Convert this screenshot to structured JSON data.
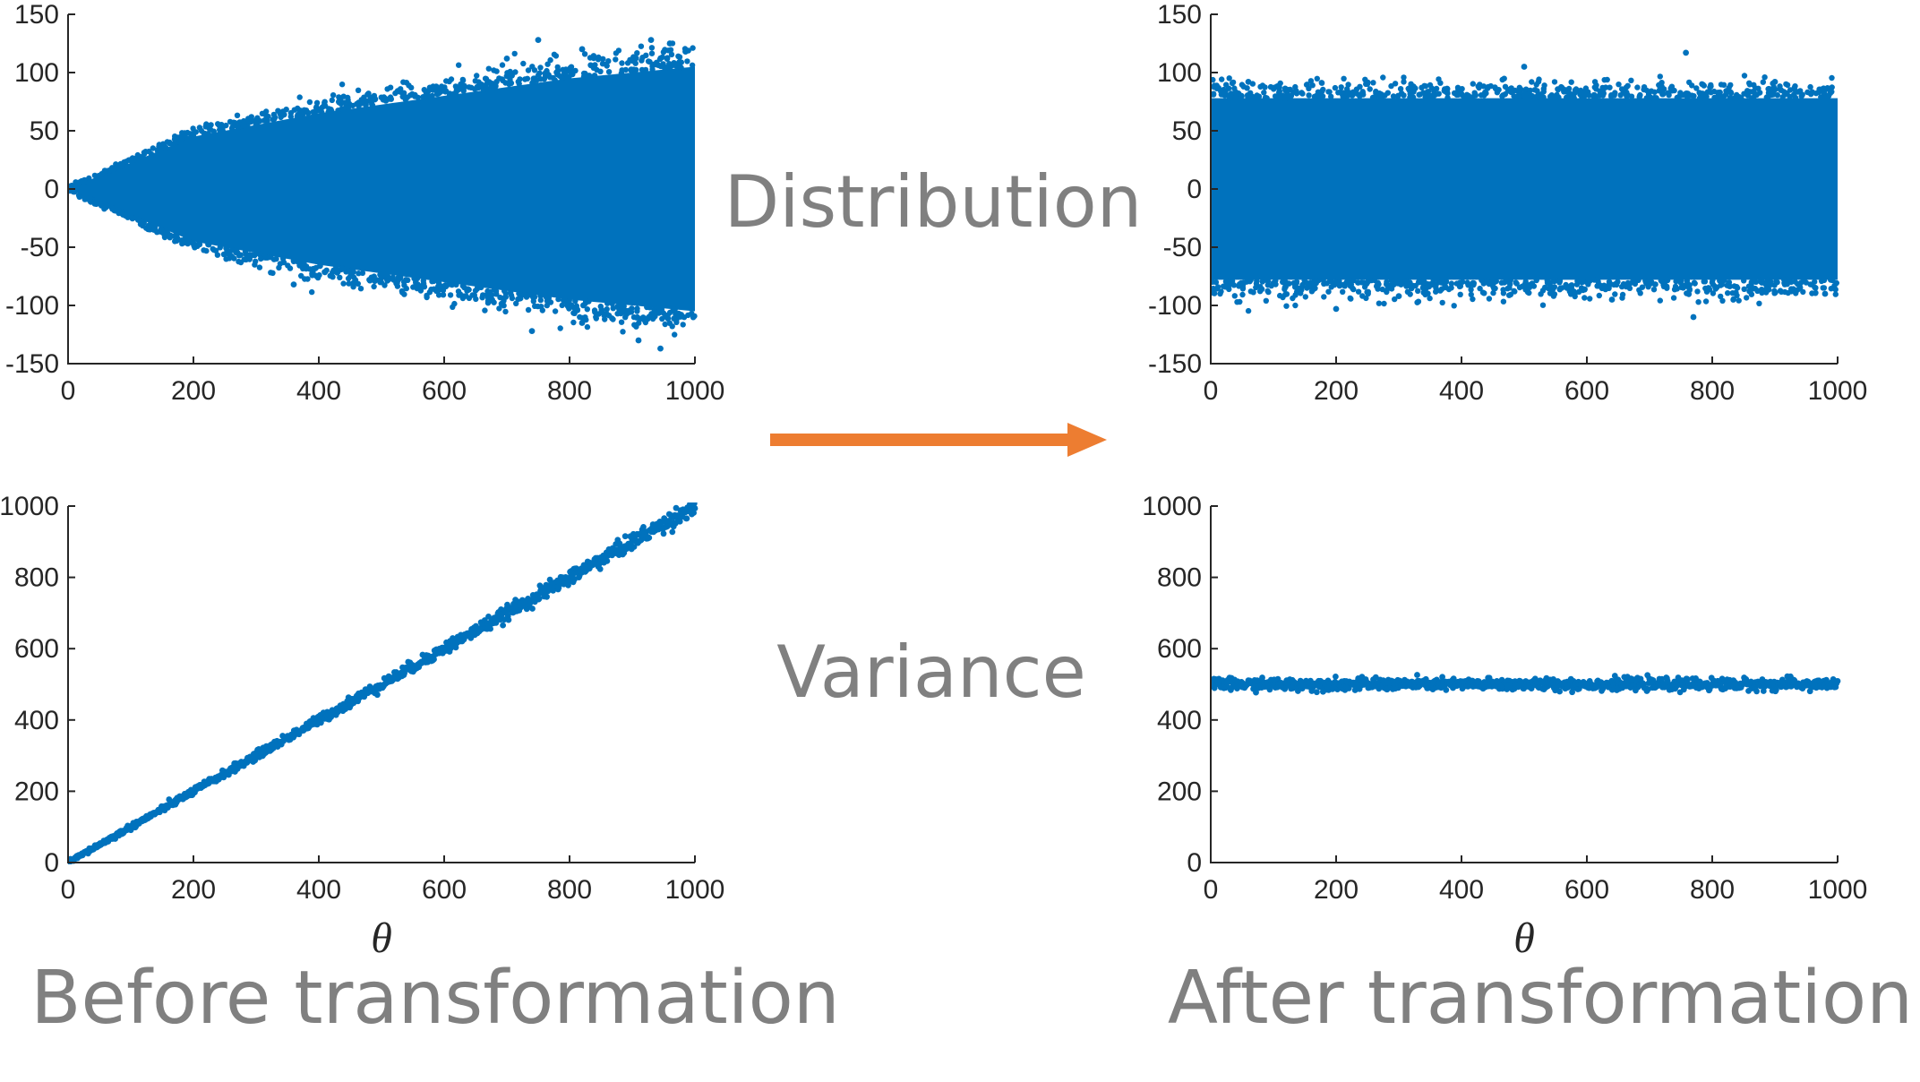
{
  "labels": {
    "distribution": "Distribution",
    "variance": "Variance",
    "before": "Before transformation",
    "after": "After transformation"
  },
  "colors": {
    "marker": "#0072BD",
    "arrow": "#ED7D31",
    "caption": "#808080",
    "axis": "#262626"
  },
  "icons": {
    "arrow": "right-arrow-icon"
  },
  "chart_data": [
    {
      "id": "distribution-before",
      "type": "scatter",
      "title": "",
      "xlabel": "",
      "ylabel": "",
      "xlim": [
        0,
        1000
      ],
      "ylim": [
        -150,
        150
      ],
      "xticks": [
        0,
        200,
        400,
        600,
        800,
        1000
      ],
      "yticks": [
        -150,
        -100,
        -50,
        0,
        50,
        100,
        150
      ],
      "grid": false,
      "shape": "cone-shaped band around 0, spread grows with theta (std ≈ sqrt(theta))",
      "envelope": {
        "x": [
          0,
          200,
          400,
          600,
          800,
          1000
        ],
        "lower": [
          0,
          -45,
          -65,
          -80,
          -95,
          -105
        ],
        "upper": [
          0,
          45,
          65,
          80,
          95,
          105
        ]
      },
      "outliers": [
        {
          "x": 750,
          "y": 128
        },
        {
          "x": 930,
          "y": 128
        },
        {
          "x": 960,
          "y": 125
        },
        {
          "x": 985,
          "y": 118
        },
        {
          "x": 700,
          "y": 112
        },
        {
          "x": 820,
          "y": 120
        },
        {
          "x": 945,
          "y": -137
        },
        {
          "x": 910,
          "y": -130
        },
        {
          "x": 740,
          "y": -122
        },
        {
          "x": 820,
          "y": -115
        },
        {
          "x": 360,
          "y": -82
        }
      ]
    },
    {
      "id": "distribution-after",
      "type": "scatter",
      "title": "",
      "xlabel": "",
      "ylabel": "",
      "xlim": [
        0,
        1000
      ],
      "ylim": [
        -150,
        150
      ],
      "xticks": [
        0,
        200,
        400,
        600,
        800,
        1000
      ],
      "yticks": [
        -150,
        -100,
        -50,
        0,
        50,
        100,
        150
      ],
      "grid": false,
      "shape": "uniform-width band around 0 across all theta",
      "envelope": {
        "x": [
          0,
          1000
        ],
        "lower": [
          -78,
          -78
        ],
        "upper": [
          78,
          78
        ]
      },
      "outliers": [
        {
          "x": 758,
          "y": 117
        },
        {
          "x": 500,
          "y": 105
        },
        {
          "x": 200,
          "y": -103
        },
        {
          "x": 770,
          "y": -110
        },
        {
          "x": 60,
          "y": 92
        },
        {
          "x": 900,
          "y": 92
        },
        {
          "x": 300,
          "y": -92
        },
        {
          "x": 640,
          "y": -95
        },
        {
          "x": 980,
          "y": -90
        }
      ]
    },
    {
      "id": "variance-before",
      "type": "scatter",
      "title": "",
      "ylabel": "",
      "xlabel": "θ",
      "xlim": [
        0,
        1000
      ],
      "ylim": [
        0,
        1000
      ],
      "xticks": [
        0,
        200,
        400,
        600,
        800,
        1000
      ],
      "yticks": [
        0,
        200,
        400,
        600,
        800,
        1000
      ],
      "grid": false,
      "shape": "variance ≈ theta (points along y = x)",
      "trend": {
        "x": [
          0,
          200,
          400,
          600,
          800,
          1000
        ],
        "y": [
          0,
          200,
          400,
          600,
          800,
          1000
        ]
      }
    },
    {
      "id": "variance-after",
      "type": "scatter",
      "title": "",
      "ylabel": "",
      "xlabel": "θ",
      "xlim": [
        0,
        1000
      ],
      "ylim": [
        0,
        1000
      ],
      "xticks": [
        0,
        200,
        400,
        600,
        800,
        1000
      ],
      "yticks": [
        0,
        200,
        400,
        600,
        800,
        1000
      ],
      "grid": false,
      "shape": "variance constant ≈ 500",
      "trend": {
        "x": [
          0,
          1000
        ],
        "y": [
          500,
          500
        ]
      }
    }
  ]
}
